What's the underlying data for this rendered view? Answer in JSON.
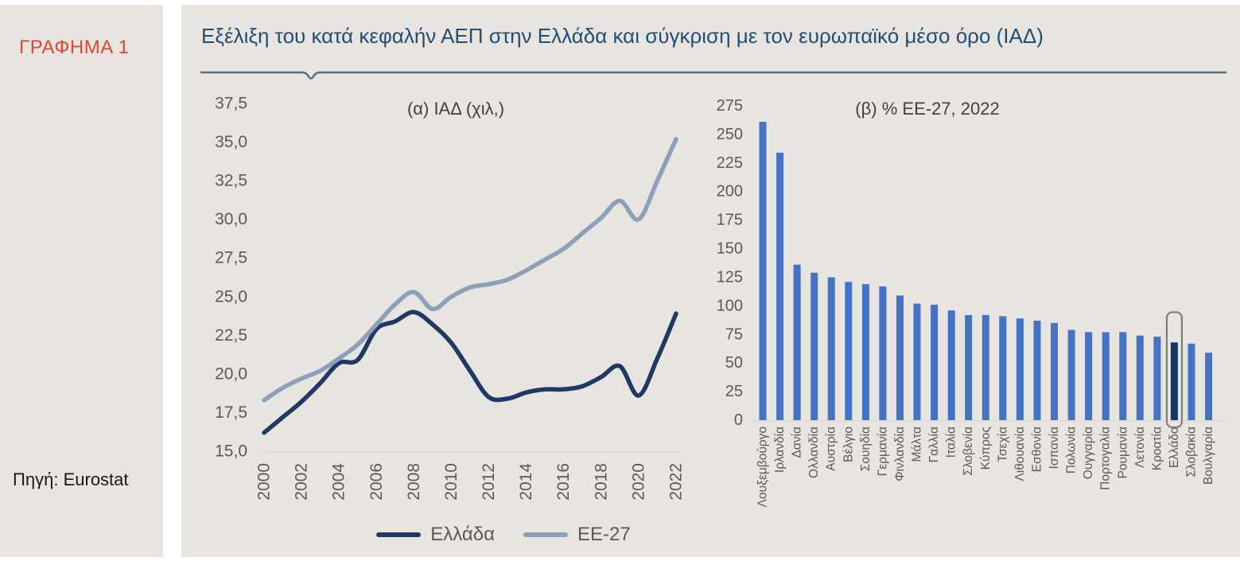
{
  "sidebar": {
    "figure_label": "ΓΡΑΦΗΜΑ 1",
    "source": "Πηγή: Eurostat"
  },
  "header": {
    "title": "Εξέλιξη του κατά κεφαλήν ΑΕΠ στην Ελλάδα και σύγκριση με τον ευρωπαϊκό μέσο όρο (ΙΑΔ)"
  },
  "colors": {
    "panel_background": "#E8E5E0",
    "figure_label_red": "#DE4532",
    "title_blue": "#1F4E79",
    "underline_blue": "#54708E",
    "axis_text_gray": "#595959",
    "greece_navy": "#1F3864",
    "eu_light_blue": "#8C9FBB",
    "bar_blue": "#4472C4",
    "highlight_navy": "#17375E",
    "highlight_box_gray": "#7F7F7F"
  },
  "chart_data": [
    {
      "type": "line",
      "title": "(α) ΙΑΔ (χιλ,)",
      "x": [
        2000,
        2001,
        2002,
        2003,
        2004,
        2005,
        2006,
        2007,
        2008,
        2009,
        2010,
        2011,
        2012,
        2013,
        2014,
        2015,
        2016,
        2017,
        2018,
        2019,
        2020,
        2021,
        2022
      ],
      "x_tick_labels": [
        "2000",
        "2002",
        "2004",
        "2006",
        "2008",
        "2010",
        "2012",
        "2014",
        "2016",
        "2018",
        "2020",
        "2022"
      ],
      "y_tick_labels": [
        "37,5",
        "35,0",
        "32,5",
        "30,0",
        "27,5",
        "25,0",
        "22,5",
        "20,0",
        "17,5",
        "15,0"
      ],
      "ylim": [
        15.0,
        37.5
      ],
      "grid": false,
      "legend_position": "bottom",
      "series": [
        {
          "name": "Ελλάδα",
          "color": "#1F3864",
          "values": [
            16.2,
            17.2,
            18.2,
            19.4,
            20.7,
            20.9,
            22.9,
            23.4,
            24.0,
            23.2,
            22.0,
            20.2,
            18.5,
            18.4,
            18.8,
            19.0,
            19.0,
            19.2,
            19.8,
            20.5,
            18.6,
            21.0,
            23.9
          ]
        },
        {
          "name": "ΕΕ-27",
          "color": "#8C9FBB",
          "values": [
            18.3,
            19.1,
            19.7,
            20.2,
            21.0,
            21.9,
            23.2,
            24.5,
            25.3,
            24.2,
            25.0,
            25.6,
            25.8,
            26.1,
            26.7,
            27.4,
            28.1,
            29.1,
            30.1,
            31.2,
            30.0,
            32.5,
            35.2
          ]
        }
      ]
    },
    {
      "type": "bar",
      "title": "(β) % ΕΕ-27, 2022",
      "categories": [
        "Λουξεμβούργο",
        "Ιρλανδία",
        "Δανία",
        "Ολλανδία",
        "Αυστρία",
        "Βέλγιο",
        "Σουηδία",
        "Γερμανία",
        "Φινλανδία",
        "Μάλτα",
        "Γαλλία",
        "Ιταλία",
        "Σλοβενία",
        "Κύπρος",
        "Τσεχία",
        "Λιθουανία",
        "Εσθονία",
        "Ισπανία",
        "Πολωνία",
        "Ουγγαρία",
        "Πορτογαλία",
        "Ρουμανία",
        "Λετονία",
        "Κροατία",
        "Ελλάδα",
        "Σλοβακία",
        "Βουλγαρία"
      ],
      "values": [
        261,
        234,
        136,
        129,
        125,
        121,
        119,
        117,
        109,
        102,
        101,
        96,
        92,
        92,
        91,
        89,
        87,
        85,
        79,
        77,
        77,
        77,
        74,
        73,
        68,
        67,
        59
      ],
      "ylim": [
        0,
        275
      ],
      "y_tick_step": 25,
      "y_tick_labels": [
        "0",
        "25",
        "50",
        "75",
        "100",
        "125",
        "150",
        "175",
        "200",
        "225",
        "250",
        "275"
      ],
      "grid": false,
      "bar_color": "#4472C4",
      "highlight_category": "Ελλάδα",
      "highlight_bar_color": "#17375E",
      "highlight_box_color": "#7F7F7F"
    }
  ]
}
